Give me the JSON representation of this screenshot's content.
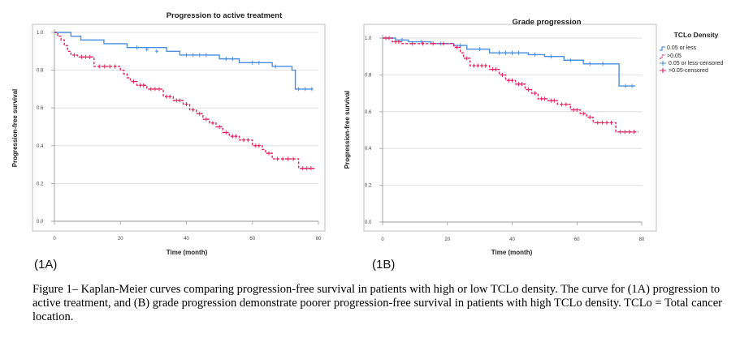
{
  "caption": "Figure 1– Kaplan-Meier curves comparing progression-free survival in patients with high or low TCLo density. The curve for (1A) progression to active treatment, and (B) grade progression demonstrate poorer progression-free survival in patients with high TCLo density. TCLo = Total cancer location.",
  "colors": {
    "low": "#4a8fe0",
    "high": "#e0245e",
    "axis": "#9a9a9a",
    "grid": "#d8d8d8"
  },
  "legend": {
    "title": "TCLo Density",
    "items": [
      "0.05 or less",
      ">0.05",
      "0.05 or less-censored",
      ">0.05-censored"
    ]
  },
  "chart_data": [
    {
      "type": "line",
      "panel_label": "(1A)",
      "title": "Progression to active treatment",
      "xlabel": "Time (month)",
      "ylabel": "Progression-free survival",
      "xlim": [
        0,
        80
      ],
      "ylim": [
        0,
        1.0
      ],
      "xticks": [
        "0",
        "20",
        "40",
        "60",
        "80"
      ],
      "yticks": [
        "0.0",
        "0.2",
        "0.4",
        "0.6",
        "0.8",
        "1.0"
      ],
      "grid": "horizontal",
      "series": [
        {
          "name": "0.05 or less",
          "style": "solid",
          "x": [
            0,
            5,
            8,
            15,
            22,
            34,
            38,
            50,
            56,
            66,
            72,
            73,
            78
          ],
          "y": [
            1.0,
            0.98,
            0.96,
            0.94,
            0.92,
            0.9,
            0.88,
            0.86,
            0.84,
            0.82,
            0.8,
            0.7,
            0.7
          ],
          "censored_x": [
            25,
            28,
            31,
            40,
            42,
            44,
            46,
            52,
            54,
            60,
            62,
            67,
            74,
            76,
            78
          ],
          "censored_y": [
            0.92,
            0.91,
            0.9,
            0.88,
            0.88,
            0.88,
            0.88,
            0.86,
            0.86,
            0.84,
            0.84,
            0.82,
            0.7,
            0.7,
            0.7
          ]
        },
        {
          "name": ">0.05",
          "style": "dashed",
          "x": [
            0,
            1,
            2,
            3,
            4,
            5,
            7,
            12,
            20,
            21,
            22,
            23,
            25,
            28,
            33,
            36,
            39,
            41,
            43,
            45,
            47,
            49,
            51,
            53,
            56,
            60,
            63,
            64,
            66,
            74,
            79
          ],
          "y": [
            1.0,
            0.98,
            0.96,
            0.93,
            0.9,
            0.88,
            0.87,
            0.82,
            0.8,
            0.78,
            0.76,
            0.74,
            0.72,
            0.7,
            0.66,
            0.64,
            0.62,
            0.59,
            0.57,
            0.54,
            0.52,
            0.5,
            0.47,
            0.45,
            0.43,
            0.4,
            0.38,
            0.36,
            0.33,
            0.28,
            0.28
          ]
        }
      ]
    },
    {
      "type": "line",
      "panel_label": "(1B)",
      "title": "Grade progression",
      "xlabel": "Time (month)",
      "ylabel": "Progression-free survival",
      "xlim": [
        0,
        80
      ],
      "ylim": [
        0,
        1.0
      ],
      "xticks": [
        "0",
        "20",
        "40",
        "60",
        "80"
      ],
      "yticks": [
        "0.0",
        "0.2",
        "0.4",
        "0.6",
        "0.8",
        "1.0"
      ],
      "grid": "horizontal",
      "series": [
        {
          "name": "0.05 or less",
          "style": "solid",
          "x": [
            0,
            4,
            8,
            15,
            22,
            26,
            33,
            45,
            50,
            56,
            62,
            73,
            78
          ],
          "y": [
            1.0,
            0.99,
            0.98,
            0.97,
            0.96,
            0.94,
            0.92,
            0.91,
            0.9,
            0.88,
            0.86,
            0.74,
            0.74
          ],
          "censored_x": [
            2,
            6,
            12,
            18,
            24,
            30,
            36,
            38,
            40,
            42,
            47,
            52,
            58,
            64,
            68,
            75,
            77
          ],
          "censored_y": [
            1.0,
            0.99,
            0.98,
            0.97,
            0.96,
            0.94,
            0.92,
            0.92,
            0.92,
            0.92,
            0.91,
            0.9,
            0.88,
            0.86,
            0.86,
            0.74,
            0.74
          ]
        },
        {
          "name": ">0.05",
          "style": "dashed",
          "x": [
            0,
            3,
            6,
            22,
            24,
            25,
            27,
            33,
            36,
            38,
            41,
            44,
            46,
            48,
            51,
            54,
            58,
            61,
            63,
            65,
            72,
            79
          ],
          "y": [
            1.0,
            0.98,
            0.97,
            0.95,
            0.92,
            0.89,
            0.85,
            0.83,
            0.8,
            0.77,
            0.75,
            0.72,
            0.7,
            0.67,
            0.66,
            0.64,
            0.61,
            0.59,
            0.57,
            0.54,
            0.49,
            0.49
          ]
        }
      ]
    }
  ]
}
